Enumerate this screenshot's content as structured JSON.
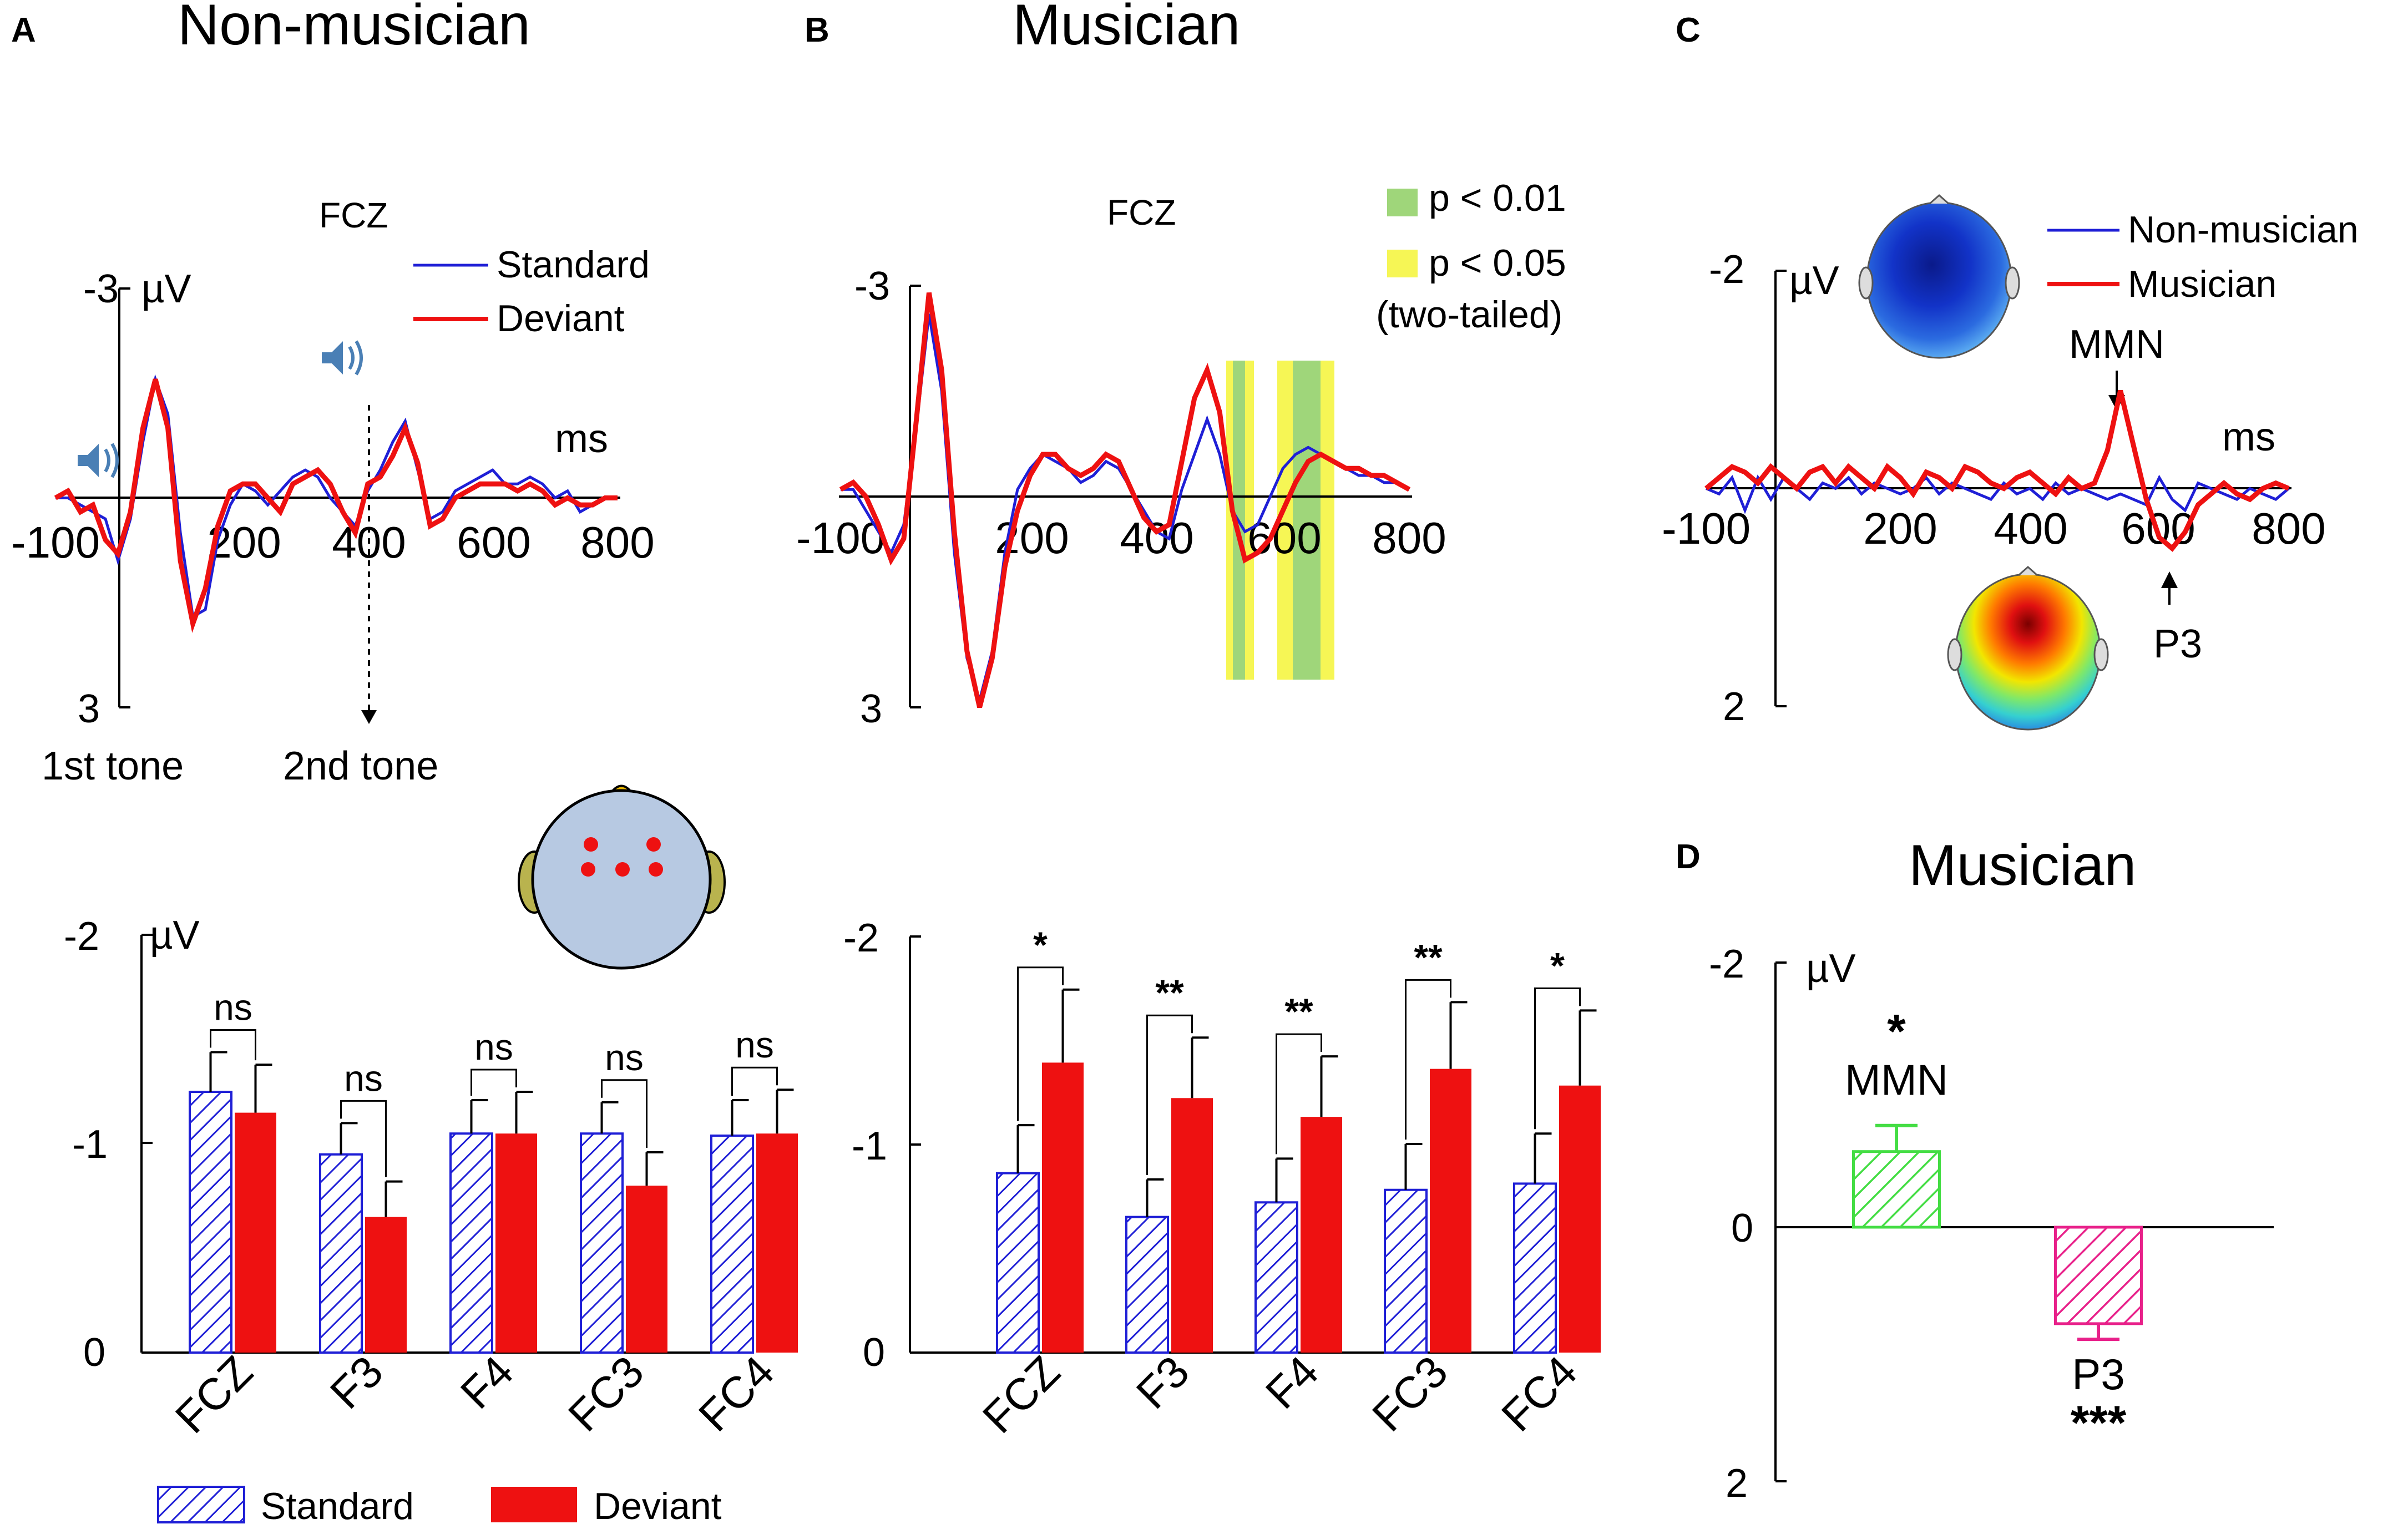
{
  "panels": {
    "A": {
      "letter": "A",
      "title": "Non-musician"
    },
    "B": {
      "letter": "B",
      "title": "Musician"
    },
    "C": {
      "letter": "C"
    },
    "D": {
      "letter": "D",
      "title": "Musician"
    }
  },
  "colors": {
    "standard": "#1f1fd6",
    "deviant": "#ee1111",
    "nonmusician": "#1f1fd6",
    "musician": "#ee1111",
    "sig_001": "#9fd67a",
    "sig_005": "#f6f655",
    "mmn_bar": "#44dd44",
    "p3_bar": "#e8218a",
    "head_fill": "#b7c9e2",
    "ear_fill": "#b9b34e",
    "nose_fill": "#e6b400",
    "speaker_icon": "#4a7fb5"
  },
  "chart_data": [
    {
      "id": "A-erp",
      "type": "line",
      "title": "FCZ",
      "xlabel": "ms",
      "ylabel": "µV",
      "xlim": [
        -100,
        800
      ],
      "ylim": [
        -3,
        3
      ],
      "y_inverted": true,
      "x_ticks": [
        -100,
        200,
        400,
        600,
        800
      ],
      "y_ticks": [
        -3,
        3
      ],
      "annotations": [
        "1st tone",
        "2nd tone"
      ],
      "legend": [
        "Standard",
        "Deviant"
      ],
      "series": [
        {
          "name": "Standard",
          "x": [
            -100,
            -80,
            -60,
            -40,
            -20,
            0,
            20,
            40,
            60,
            80,
            100,
            120,
            140,
            160,
            180,
            200,
            220,
            240,
            260,
            280,
            300,
            320,
            340,
            360,
            380,
            400,
            420,
            440,
            460,
            480,
            500,
            520,
            540,
            560,
            580,
            600,
            620,
            640,
            660,
            680,
            700,
            720,
            740,
            760,
            780,
            800
          ],
          "y": [
            0,
            0,
            0.1,
            0.2,
            0.3,
            0.9,
            0.3,
            -0.8,
            -1.7,
            -1.2,
            0.5,
            1.7,
            1.6,
            0.6,
            0.1,
            -0.2,
            -0.1,
            0.1,
            -0.1,
            -0.3,
            -0.4,
            -0.3,
            0,
            0.2,
            0.4,
            -0.1,
            -0.4,
            -0.8,
            -1.1,
            -0.4,
            0.3,
            0.2,
            -0.1,
            -0.2,
            -0.3,
            -0.4,
            -0.2,
            -0.2,
            -0.3,
            -0.2,
            0,
            -0.1,
            0.2,
            0.1,
            0,
            0
          ]
        },
        {
          "name": "Deviant",
          "x": [
            -100,
            -80,
            -60,
            -40,
            -20,
            0,
            20,
            40,
            60,
            80,
            100,
            120,
            140,
            160,
            180,
            200,
            220,
            240,
            260,
            280,
            300,
            320,
            340,
            360,
            380,
            400,
            420,
            440,
            460,
            480,
            500,
            520,
            540,
            560,
            580,
            600,
            620,
            640,
            660,
            680,
            700,
            720,
            740,
            760,
            780,
            800
          ],
          "y": [
            0,
            -0.1,
            0.2,
            0.1,
            0.6,
            0.8,
            0.2,
            -1.0,
            -1.7,
            -1.0,
            0.9,
            1.8,
            1.3,
            0.4,
            -0.1,
            -0.2,
            -0.2,
            0,
            0.2,
            -0.2,
            -0.3,
            -0.4,
            -0.2,
            0.2,
            0.5,
            -0.2,
            -0.3,
            -0.6,
            -1.0,
            -0.5,
            0.4,
            0.3,
            0,
            -0.1,
            -0.2,
            -0.2,
            -0.2,
            -0.1,
            -0.2,
            -0.1,
            0.1,
            0,
            0.1,
            0.1,
            0,
            0
          ]
        }
      ]
    },
    {
      "id": "B-erp",
      "type": "line",
      "title": "FCZ",
      "xlim": [
        -100,
        800
      ],
      "ylim": [
        -3,
        3
      ],
      "y_inverted": true,
      "x_ticks": [
        -100,
        200,
        400,
        600,
        800
      ],
      "y_ticks": [
        -3,
        3
      ],
      "legend": [
        "p < 0.01",
        "p < 0.05",
        "(two-tailed)"
      ],
      "significance": [
        {
          "level": "p < 0.05",
          "x_range": [
            505,
            550
          ]
        },
        {
          "level": "p < 0.01",
          "x_range": [
            515,
            540
          ]
        },
        {
          "level": "p < 0.05",
          "x_range": [
            580,
            665
          ]
        },
        {
          "level": "p < 0.01",
          "x_range": [
            595,
            645
          ]
        }
      ],
      "series": [
        {
          "name": "Standard",
          "x": [
            -100,
            -80,
            -60,
            -40,
            -20,
            0,
            20,
            40,
            60,
            80,
            100,
            120,
            140,
            160,
            180,
            200,
            220,
            240,
            260,
            280,
            300,
            320,
            340,
            360,
            380,
            400,
            420,
            440,
            460,
            480,
            500,
            520,
            540,
            560,
            580,
            600,
            620,
            640,
            660,
            680,
            700,
            720,
            740,
            760,
            780,
            800
          ],
          "y": [
            -0.1,
            -0.1,
            0.2,
            0.5,
            0.8,
            0.4,
            -1.0,
            -2.6,
            -1.5,
            0.8,
            2.3,
            2.9,
            2.2,
            0.8,
            -0.1,
            -0.4,
            -0.6,
            -0.5,
            -0.4,
            -0.2,
            -0.3,
            -0.5,
            -0.4,
            -0.1,
            0.2,
            0.5,
            0.6,
            -0.1,
            -0.6,
            -1.1,
            -0.6,
            0.2,
            0.5,
            0.4,
            0,
            -0.4,
            -0.6,
            -0.7,
            -0.6,
            -0.5,
            -0.4,
            -0.3,
            -0.3,
            -0.2,
            -0.2,
            -0.1
          ]
        },
        {
          "name": "Deviant",
          "x": [
            -100,
            -80,
            -60,
            -40,
            -20,
            0,
            20,
            40,
            60,
            80,
            100,
            120,
            140,
            160,
            180,
            200,
            220,
            240,
            260,
            280,
            300,
            320,
            340,
            360,
            380,
            400,
            420,
            440,
            460,
            480,
            500,
            520,
            540,
            560,
            580,
            600,
            620,
            640,
            660,
            680,
            700,
            720,
            740,
            760,
            780,
            800
          ],
          "y": [
            -0.1,
            -0.2,
            0,
            0.4,
            0.9,
            0.6,
            -1.1,
            -2.9,
            -1.8,
            0.5,
            2.2,
            3.0,
            2.3,
            1.0,
            0.2,
            -0.3,
            -0.6,
            -0.6,
            -0.4,
            -0.3,
            -0.4,
            -0.6,
            -0.5,
            -0.1,
            0.3,
            0.5,
            0.4,
            -0.5,
            -1.4,
            -1.8,
            -1.2,
            0.2,
            0.9,
            0.8,
            0.6,
            0.2,
            -0.2,
            -0.5,
            -0.6,
            -0.5,
            -0.4,
            -0.4,
            -0.3,
            -0.3,
            -0.2,
            -0.1
          ]
        }
      ]
    },
    {
      "id": "C-diff",
      "type": "line",
      "xlabel": "ms",
      "ylabel": "µV",
      "xlim": [
        -100,
        800
      ],
      "ylim": [
        -2,
        2
      ],
      "y_inverted": true,
      "x_ticks": [
        -100,
        200,
        400,
        600,
        800
      ],
      "y_ticks": [
        -2,
        2
      ],
      "legend": [
        "Non-musician",
        "Musician"
      ],
      "annotations": [
        "MMN",
        "P3"
      ],
      "series": [
        {
          "name": "Non-musician",
          "x": [
            -100,
            -80,
            -60,
            -40,
            -20,
            0,
            20,
            40,
            60,
            80,
            100,
            120,
            140,
            160,
            180,
            200,
            220,
            240,
            260,
            280,
            300,
            320,
            340,
            360,
            380,
            400,
            420,
            440,
            460,
            480,
            500,
            520,
            540,
            560,
            580,
            600,
            620,
            640,
            660,
            680,
            700,
            720,
            740,
            760,
            780,
            800
          ],
          "y": [
            0,
            0.05,
            -0.1,
            0.2,
            -0.1,
            0.1,
            -0.1,
            0,
            0.1,
            -0.05,
            0,
            -0.1,
            0.05,
            -0.05,
            0,
            0.05,
            0,
            -0.1,
            0.05,
            -0.05,
            0,
            0.05,
            0.1,
            -0.05,
            0.05,
            0,
            0.1,
            -0.05,
            0.05,
            0,
            0.05,
            0.1,
            0.05,
            0.1,
            0.15,
            -0.1,
            0.1,
            0.2,
            -0.05,
            0,
            0.05,
            0.1,
            0,
            0.05,
            0.1,
            0
          ]
        },
        {
          "name": "Musician",
          "x": [
            -100,
            -80,
            -60,
            -40,
            -20,
            0,
            20,
            40,
            60,
            80,
            100,
            120,
            140,
            160,
            180,
            200,
            220,
            240,
            260,
            280,
            300,
            320,
            340,
            360,
            380,
            400,
            420,
            440,
            460,
            480,
            500,
            520,
            540,
            560,
            580,
            600,
            620,
            640,
            660,
            680,
            700,
            720,
            740,
            760,
            780,
            800
          ],
          "y": [
            0,
            -0.1,
            -0.2,
            -0.15,
            -0.05,
            -0.2,
            -0.1,
            0,
            -0.15,
            -0.2,
            -0.05,
            -0.2,
            -0.1,
            0,
            -0.2,
            -0.1,
            0.05,
            -0.15,
            -0.1,
            0,
            -0.2,
            -0.15,
            -0.05,
            0,
            -0.1,
            -0.15,
            -0.05,
            0.05,
            -0.1,
            0,
            -0.05,
            -0.35,
            -0.9,
            -0.4,
            0.1,
            0.45,
            0.55,
            0.4,
            0.15,
            0.05,
            -0.05,
            0.05,
            0.1,
            0,
            -0.05,
            0
          ]
        }
      ]
    },
    {
      "id": "A-bars",
      "type": "bar",
      "ylabel": "µV",
      "ylim": [
        -2,
        0
      ],
      "y_inverted": true,
      "y_ticks": [
        -2,
        -1,
        0
      ],
      "categories": [
        "FCZ",
        "F3",
        "F4",
        "FC3",
        "FC4"
      ],
      "series": [
        {
          "name": "Standard",
          "values": [
            -1.25,
            -0.95,
            -1.05,
            -1.05,
            -1.04
          ],
          "errors": [
            0.19,
            0.15,
            0.16,
            0.15,
            0.17
          ]
        },
        {
          "name": "Deviant",
          "values": [
            -1.15,
            -0.65,
            -1.05,
            -0.8,
            -1.05
          ],
          "errors": [
            0.23,
            0.17,
            0.2,
            0.16,
            0.21
          ]
        }
      ],
      "significance": [
        "ns",
        "ns",
        "ns",
        "ns",
        "ns"
      ]
    },
    {
      "id": "B-bars",
      "type": "bar",
      "ylim": [
        -2,
        0
      ],
      "y_inverted": true,
      "y_ticks": [
        -2,
        -1,
        0
      ],
      "categories": [
        "FCZ",
        "F3",
        "F4",
        "FC3",
        "FC4"
      ],
      "series": [
        {
          "name": "Standard",
          "values": [
            -0.86,
            -0.65,
            -0.72,
            -0.78,
            -0.81
          ],
          "errors": [
            0.23,
            0.18,
            0.21,
            0.22,
            0.24
          ]
        },
        {
          "name": "Deviant",
          "values": [
            -1.39,
            -1.22,
            -1.13,
            -1.36,
            -1.28
          ],
          "errors": [
            0.35,
            0.29,
            0.29,
            0.32,
            0.36
          ]
        }
      ],
      "significance": [
        "*",
        "**",
        "**",
        "**",
        "*"
      ]
    },
    {
      "id": "D-bars",
      "type": "bar",
      "ylabel": "µV",
      "ylim": [
        -2,
        2
      ],
      "y_inverted": true,
      "y_ticks": [
        -2,
        0,
        2
      ],
      "categories": [
        "MMN",
        "P3"
      ],
      "values": [
        -0.58,
        0.74
      ],
      "errors": [
        0.2,
        0.12
      ],
      "significance": [
        "*",
        "***"
      ]
    }
  ],
  "legend_bottom": {
    "standard": "Standard",
    "deviant": "Deviant"
  }
}
